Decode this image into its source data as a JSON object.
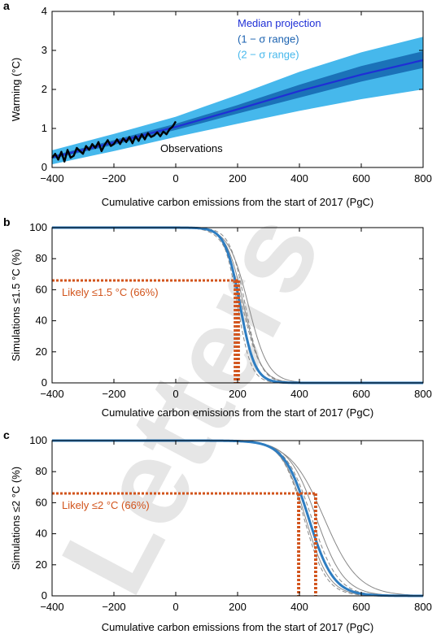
{
  "colors": {
    "median": "#1f2fd6",
    "band1": "#1b72b8",
    "band2": "#46b8ec",
    "observations": "#000000",
    "likely": "#d2541c",
    "sim_main": "#2e7dc1",
    "sim_gray": "#888888",
    "legend_median": "#1f2fd6",
    "legend_1sigma": "#1b62b0",
    "legend_2sigma": "#46b8ec",
    "watermark": "#e6e6e6"
  },
  "watermark": "Letters",
  "chart_data": [
    {
      "panel_label": "a",
      "type": "area",
      "xlabel": "Cumulative carbon emissions from the start of 2017 (PgC)",
      "ylabel": "Warming (°C)",
      "xlim": [
        -400,
        800
      ],
      "ylim": [
        0,
        4
      ],
      "xticks": [
        "−400",
        "−200",
        "0",
        "200",
        "400",
        "600",
        "800"
      ],
      "yticks": [
        "0",
        "1",
        "2",
        "3",
        "4"
      ],
      "grid": false,
      "legend_position": "top-right",
      "legend": {
        "median": "Median projection",
        "one_sigma": "(1 − σ range)",
        "two_sigma": "(2 − σ range)"
      },
      "annotation": "Observations",
      "x": [
        -400,
        -200,
        0,
        200,
        400,
        600,
        800
      ],
      "series": [
        {
          "name": "Median projection",
          "values": [
            0.26,
            0.64,
            1.04,
            1.49,
            1.96,
            2.38,
            2.75
          ]
        },
        {
          "name": "(1 − σ range) lower",
          "values": [
            0.22,
            0.58,
            0.96,
            1.38,
            1.79,
            2.2,
            2.55
          ]
        },
        {
          "name": "(1 − σ range) upper",
          "values": [
            0.3,
            0.7,
            1.12,
            1.6,
            2.12,
            2.6,
            2.98
          ]
        },
        {
          "name": "(2 − σ range) lower",
          "values": [
            0.08,
            0.42,
            0.78,
            1.12,
            1.45,
            1.75,
            2.0
          ]
        },
        {
          "name": "(2 − σ range) upper",
          "values": [
            0.44,
            0.86,
            1.3,
            1.86,
            2.45,
            2.95,
            3.35
          ]
        }
      ],
      "observations": {
        "name": "Observations",
        "x": [
          -400,
          -390,
          -380,
          -370,
          -360,
          -350,
          -340,
          -330,
          -320,
          -310,
          -300,
          -290,
          -280,
          -270,
          -260,
          -250,
          -240,
          -230,
          -220,
          -210,
          -200,
          -190,
          -180,
          -170,
          -160,
          -150,
          -140,
          -130,
          -120,
          -110,
          -100,
          -90,
          -80,
          -70,
          -60,
          -50,
          -40,
          -30,
          -20,
          -10,
          0
        ],
        "y": [
          0.25,
          0.35,
          0.2,
          0.4,
          0.15,
          0.45,
          0.25,
          0.3,
          0.5,
          0.42,
          0.35,
          0.55,
          0.45,
          0.6,
          0.5,
          0.65,
          0.42,
          0.58,
          0.7,
          0.55,
          0.6,
          0.72,
          0.6,
          0.75,
          0.65,
          0.78,
          0.62,
          0.8,
          0.68,
          0.85,
          0.72,
          0.88,
          0.78,
          0.82,
          0.9,
          0.8,
          0.92,
          0.85,
          0.98,
          1.05,
          1.18
        ]
      }
    },
    {
      "panel_label": "b",
      "type": "line",
      "xlabel": "Cumulative carbon emissions from the start of 2017 (PgC)",
      "ylabel": "Simulations ≤1.5 °C (%)",
      "xlim": [
        -400,
        800
      ],
      "ylim": [
        0,
        100
      ],
      "xticks": [
        "−400",
        "−200",
        "0",
        "200",
        "400",
        "600",
        "800"
      ],
      "yticks": [
        "0",
        "20",
        "40",
        "60",
        "80",
        "100"
      ],
      "grid": false,
      "annotation": "Likely ≤1.5 °C (66%)",
      "likely_level": 66,
      "likely_x": [
        190,
        195,
        200,
        205
      ],
      "main_curve": {
        "midpoint": 208,
        "width": 24
      },
      "gray_curves": [
        {
          "style": "solid",
          "midpoint": 235,
          "width": 32
        },
        {
          "style": "solid",
          "midpoint": 220,
          "width": 28
        },
        {
          "style": "dashed",
          "midpoint": 200,
          "width": 22
        },
        {
          "style": "dashed",
          "midpoint": 225,
          "width": 25
        },
        {
          "style": "dashed",
          "midpoint": 215,
          "width": 30
        }
      ]
    },
    {
      "panel_label": "c",
      "type": "line",
      "xlabel": "Cumulative carbon emissions from the start of 2017 (PgC)",
      "ylabel": "Simulations ≤2 °C (%)",
      "xlim": [
        -400,
        800
      ],
      "ylim": [
        0,
        100
      ],
      "xticks": [
        "−400",
        "−200",
        "0",
        "200",
        "400",
        "600",
        "800"
      ],
      "yticks": [
        "0",
        "20",
        "40",
        "60",
        "80",
        "100"
      ],
      "grid": false,
      "annotation": "Likely ≤2 °C (66%)",
      "likely_level": 66,
      "likely_x": [
        395,
        400,
        450,
        455
      ],
      "main_curve": {
        "midpoint": 430,
        "width": 40
      },
      "gray_curves": [
        {
          "style": "solid",
          "midpoint": 480,
          "width": 55
        },
        {
          "style": "solid",
          "midpoint": 455,
          "width": 45
        },
        {
          "style": "solid",
          "midpoint": 420,
          "width": 38
        },
        {
          "style": "dashed",
          "midpoint": 415,
          "width": 36
        },
        {
          "style": "dashed",
          "midpoint": 440,
          "width": 42
        }
      ]
    }
  ]
}
